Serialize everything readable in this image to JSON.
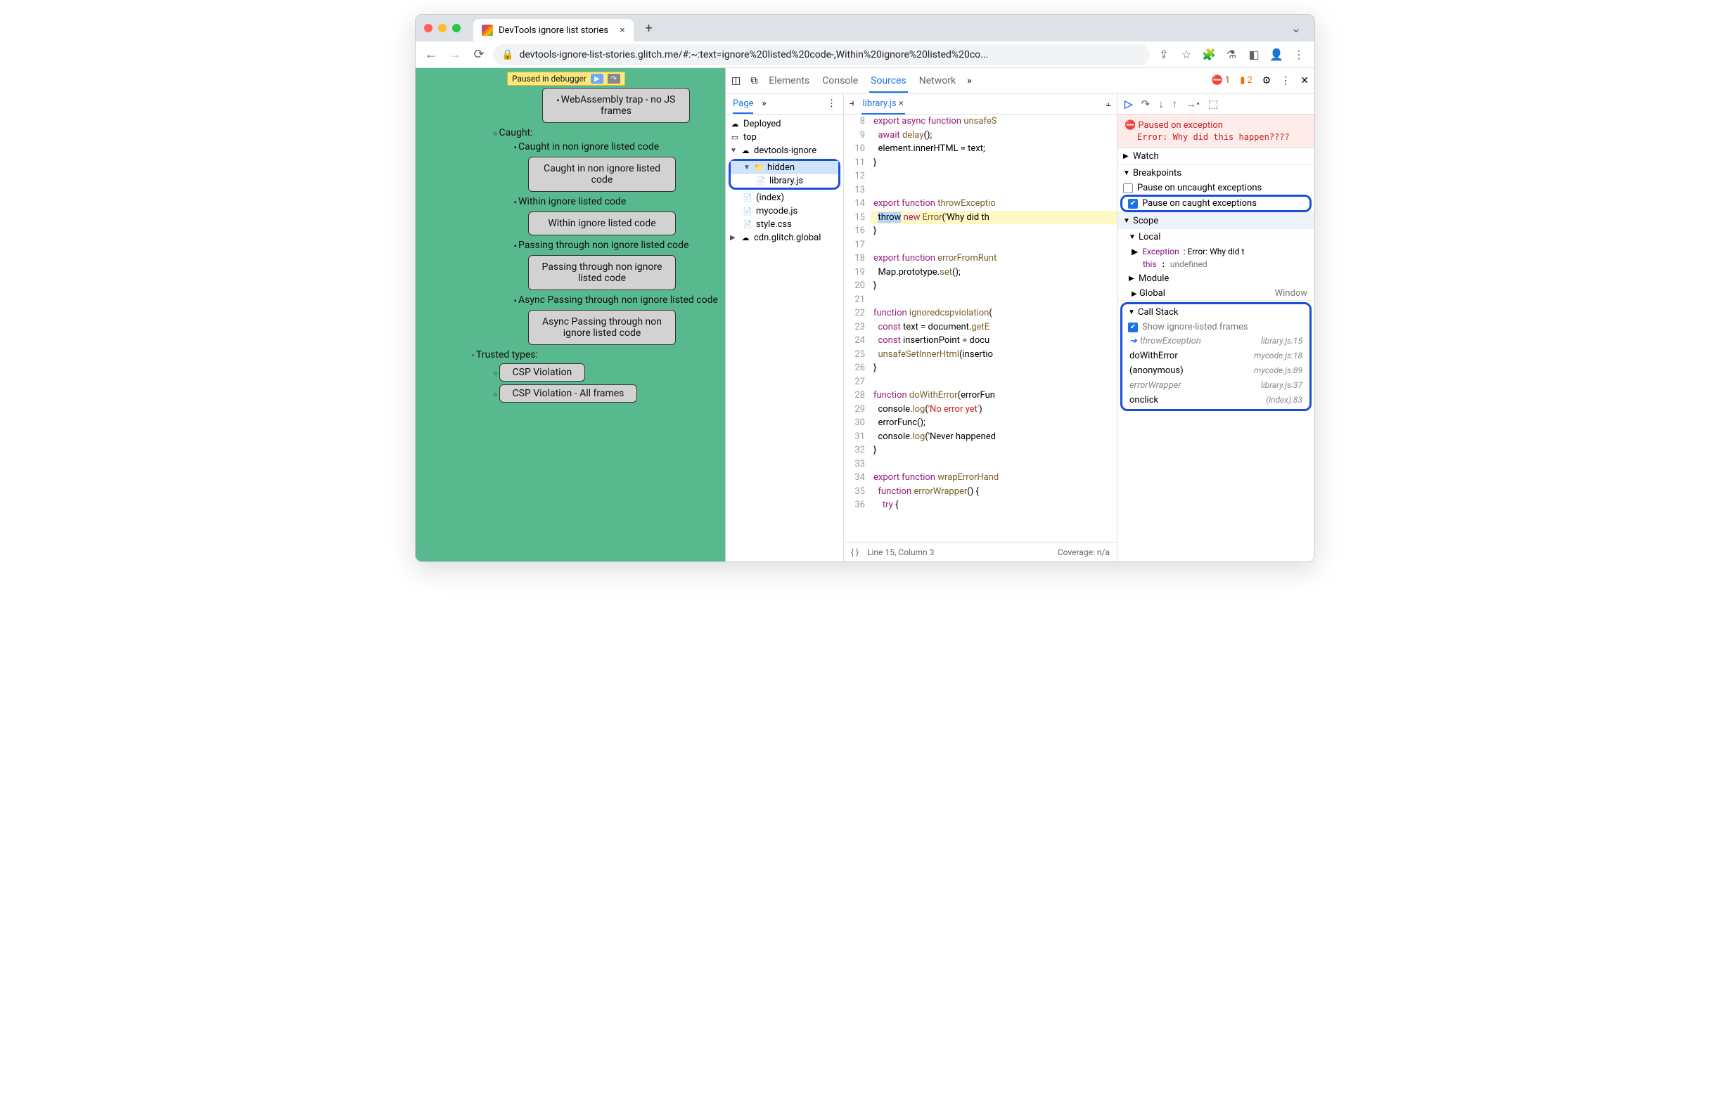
{
  "colors": {
    "page_bg": "#59b98e",
    "highlight": "#1a4fd8",
    "paused_bg": "#ffe87c",
    "accent": "#1a73e8"
  },
  "window": {
    "traffic": [
      "#ff5f57",
      "#febc2e",
      "#28c840"
    ],
    "tab_title": "DevTools ignore list stories",
    "url": "devtools-ignore-list-stories.glitch.me/#:~:text=ignore%20listed%20code-,Within%20ignore%20listed%20co..."
  },
  "page": {
    "paused_label": "Paused in debugger",
    "items": {
      "wasm": "WebAssembly trap - no JS frames",
      "caught": "Caught:",
      "caught_non_ignore_text": "Caught in non ignore listed code",
      "caught_non_ignore_btn": "Caught in non ignore listed code",
      "within_text": "Within ignore listed code",
      "within_btn": "Within ignore listed code",
      "passing_text": "Passing through non ignore listed code",
      "passing_btn": "Passing through non ignore listed code",
      "async_text": "Async Passing through non ignore listed code",
      "async_btn": "Async Passing through non ignore listed code",
      "trusted": "Trusted types:",
      "csp1": "CSP Violation",
      "csp2": "CSP Violation - All frames"
    }
  },
  "devtools": {
    "tabs": [
      "Elements",
      "Console",
      "Sources",
      "Network"
    ],
    "active_tab": "Sources",
    "errors": "1",
    "warnings": "2",
    "nav": {
      "subtab": "Page",
      "tree": {
        "deployed": "Deployed",
        "top": "top",
        "domain": "devtools-ignore",
        "hidden": "hidden",
        "library": "library.js",
        "index": "(index)",
        "mycode": "mycode.js",
        "style": "style.css",
        "cdn": "cdn.glitch.global"
      }
    },
    "editor": {
      "filename": "library.js",
      "status_line": "Line 15, Column 3",
      "coverage": "Coverage: n/a",
      "lines": [
        {
          "n": 8,
          "t": "export async function unsafeS"
        },
        {
          "n": 9,
          "t": "  await delay();"
        },
        {
          "n": 10,
          "t": "  element.innerHTML = text;"
        },
        {
          "n": 11,
          "t": "}"
        },
        {
          "n": 12,
          "t": ""
        },
        {
          "n": 13,
          "t": ""
        },
        {
          "n": 14,
          "t": "export function throwExceptio"
        },
        {
          "n": 15,
          "t": "  throw new Error('Why did th",
          "hl": true
        },
        {
          "n": 16,
          "t": "}"
        },
        {
          "n": 17,
          "t": ""
        },
        {
          "n": 18,
          "t": "export function errorFromRunt"
        },
        {
          "n": 19,
          "t": "  Map.prototype.set();"
        },
        {
          "n": 20,
          "t": "}"
        },
        {
          "n": 21,
          "t": ""
        },
        {
          "n": 22,
          "t": "function ignoredcspviolation("
        },
        {
          "n": 23,
          "t": "  const text = document.getE"
        },
        {
          "n": 24,
          "t": "  const insertionPoint = docu"
        },
        {
          "n": 25,
          "t": "  unsafeSetInnerHtml(insertio"
        },
        {
          "n": 26,
          "t": "}"
        },
        {
          "n": 27,
          "t": ""
        },
        {
          "n": 28,
          "t": "function doWithError(errorFun"
        },
        {
          "n": 29,
          "t": "  console.log('No error yet')"
        },
        {
          "n": 30,
          "t": "  errorFunc();"
        },
        {
          "n": 31,
          "t": "  console.log('Never happened"
        },
        {
          "n": 32,
          "t": "}"
        },
        {
          "n": 33,
          "t": ""
        },
        {
          "n": 34,
          "t": "export function wrapErrorHand"
        },
        {
          "n": 35,
          "t": "  function errorWrapper() {"
        },
        {
          "n": 36,
          "t": "    try {"
        }
      ]
    },
    "debugger": {
      "exception_title": "Paused on exception",
      "exception_msg": "Error: Why did this happen????",
      "sections": {
        "watch": "Watch",
        "breakpoints": "Breakpoints",
        "pause_uncaught": "Pause on uncaught exceptions",
        "pause_caught": "Pause on caught exceptions",
        "scope": "Scope",
        "local": "Local",
        "exc_label": "Exception",
        "exc_val": ": Error: Why did t",
        "this_label": "this",
        "this_val": "undefined",
        "module": "Module",
        "global": "Global",
        "global_val": "Window",
        "callstack": "Call Stack",
        "show_ignored": "Show ignore-listed frames"
      },
      "callstack": [
        {
          "fn": "throwException",
          "loc": "library.js:15",
          "ignored": true,
          "current": true
        },
        {
          "fn": "doWithError",
          "loc": "mycode.js:18"
        },
        {
          "fn": "(anonymous)",
          "loc": "mycode.js:89"
        },
        {
          "fn": "errorWrapper",
          "loc": "library.js:37",
          "ignored": true
        },
        {
          "fn": "onclick",
          "loc": "(index):83"
        }
      ]
    }
  }
}
